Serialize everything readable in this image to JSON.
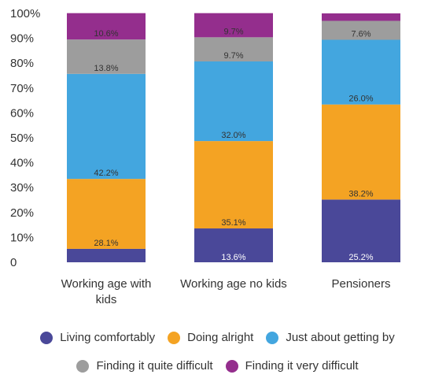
{
  "chart_data": {
    "type": "bar",
    "stacked": true,
    "title": "",
    "xlabel": "",
    "ylabel": "",
    "ylim": [
      0,
      100
    ],
    "y_ticks": [
      "0",
      "10%",
      "20%",
      "30%",
      "40%",
      "50%",
      "60%",
      "70%",
      "80%",
      "90%",
      "100%"
    ],
    "categories": [
      [
        "Working age with",
        "kids"
      ],
      [
        "Working age no kids"
      ],
      [
        "Pensioners"
      ]
    ],
    "series": [
      {
        "name": "Living comfortably",
        "color": "#4a4899",
        "values": [
          5.4,
          13.6,
          25.2
        ],
        "labels": [
          "",
          "13.6%",
          "25.2%"
        ]
      },
      {
        "name": "Doing alright",
        "color": "#f4a323",
        "values": [
          28.1,
          35.1,
          38.2
        ],
        "labels": [
          "28.1%",
          "35.1%",
          "38.2%"
        ]
      },
      {
        "name": "Just about getting by",
        "color": "#43a6df",
        "values": [
          42.2,
          32.0,
          26.0
        ],
        "labels": [
          "42.2%",
          "32.0%",
          "26.0%"
        ]
      },
      {
        "name": "Finding it quite difficult",
        "color": "#9d9d9d",
        "values": [
          13.8,
          9.7,
          7.6
        ],
        "labels": [
          "13.8%",
          "9.7%",
          "7.6%"
        ]
      },
      {
        "name": "Finding it very difficult",
        "color": "#942e8d",
        "values": [
          10.6,
          9.7,
          3.0
        ],
        "labels": [
          "10.6%",
          "9.7%",
          ""
        ]
      }
    ],
    "grid": false,
    "legend_position": "bottom"
  }
}
